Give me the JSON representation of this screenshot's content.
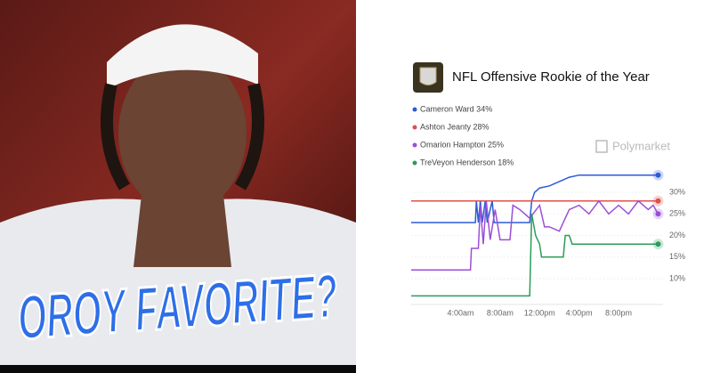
{
  "image_text": {
    "headline": "OROY FAVORITE?"
  },
  "chart_data": {
    "type": "line",
    "title": "NFL Offensive Rookie of the Year",
    "watermark": "Polymarket",
    "series": [
      {
        "name": "Cameron Ward 34%",
        "color": "#2b5bd7",
        "x": [
          -1,
          5.5,
          5.6,
          5.8,
          6.0,
          6.2,
          6.5,
          6.7,
          7.2,
          7.4,
          11.0,
          11.2,
          11.5,
          12,
          13,
          14,
          15,
          16,
          24
        ],
        "values": [
          23,
          23,
          28,
          23,
          28,
          23,
          28,
          23,
          28,
          23,
          23,
          28,
          30,
          31,
          31.5,
          32.5,
          33.5,
          34,
          34
        ]
      },
      {
        "name": "Ashton Jeanty 28%",
        "color": "#e0504a",
        "x": [
          -1,
          24
        ],
        "values": [
          28,
          28
        ]
      },
      {
        "name": "Omarion Hampton 25%",
        "color": "#9b4fd6",
        "x": [
          -1,
          5.0,
          5.1,
          5.8,
          6.0,
          6.3,
          6.6,
          7.0,
          7.5,
          8.0,
          9.0,
          9.3,
          10.0,
          11.0,
          12.0,
          12.5,
          13.0,
          14.0,
          15.0,
          16.0,
          17.0,
          18.0,
          19.0,
          20.0,
          21.0,
          22.0,
          23.0,
          23.5,
          24
        ],
        "values": [
          12,
          12,
          17,
          17,
          27,
          18,
          28,
          19,
          26,
          19,
          19,
          27,
          26,
          24,
          27,
          22,
          22,
          21,
          26,
          27,
          25,
          28,
          25,
          27,
          25,
          28,
          26,
          27,
          25
        ]
      },
      {
        "name": "TreVeyon Henderson 18%",
        "color": "#2a9d5a",
        "x": [
          -1,
          11.0,
          11.2,
          11.6,
          12.0,
          12.2,
          14.4,
          14.6,
          15.0,
          15.3,
          24
        ],
        "values": [
          6,
          6,
          25,
          20,
          18,
          15,
          15,
          20,
          20,
          18,
          18
        ]
      }
    ],
    "xlim": [
      -1,
      24.5
    ],
    "xticks": [
      {
        "value": 4,
        "label": "4:00am"
      },
      {
        "value": 8,
        "label": "8:00am"
      },
      {
        "value": 12,
        "label": "12:00pm"
      },
      {
        "value": 16,
        "label": "4:00pm"
      },
      {
        "value": 20,
        "label": "8:00pm"
      }
    ],
    "ylim": [
      4,
      36
    ],
    "yticks": [
      {
        "value": 10,
        "label": "10%"
      },
      {
        "value": 15,
        "label": "15%"
      },
      {
        "value": 20,
        "label": "20%"
      },
      {
        "value": 25,
        "label": "25%"
      },
      {
        "value": 30,
        "label": "30%"
      }
    ],
    "grid": true
  }
}
